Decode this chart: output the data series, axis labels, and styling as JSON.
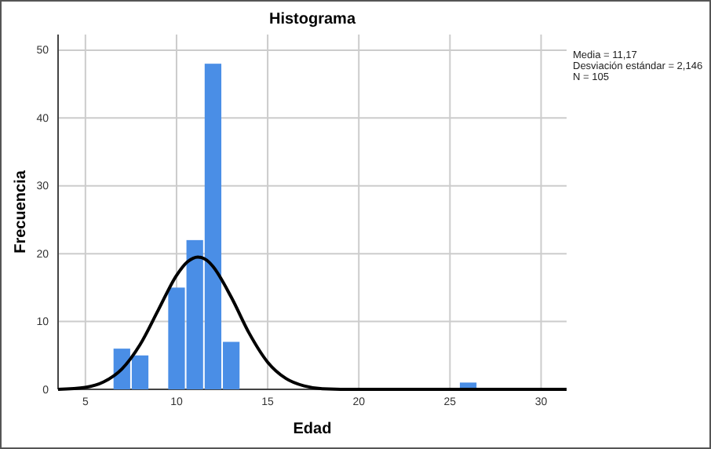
{
  "chart_data": {
    "type": "histogram",
    "title": "Histograma",
    "xlabel": "Edad",
    "ylabel": "Frecuencia",
    "bins": [
      6.5,
      7.5,
      8.5,
      9.5,
      10.5,
      11.5,
      12.5,
      13.5,
      14.5,
      15.5,
      16.5,
      17.5,
      18.5,
      19.5,
      20.5,
      21.5,
      22.5,
      23.5,
      24.5,
      25.5,
      26.5
    ],
    "values": [
      6,
      5,
      0,
      15,
      22,
      48,
      7,
      0,
      0,
      0,
      0,
      0,
      0,
      0,
      0,
      0,
      0,
      0,
      0,
      1
    ],
    "color": "#4a8ee6",
    "series": [
      {
        "type": "line",
        "color": "#000000",
        "x": [
          3.5,
          5,
          6,
          7,
          8,
          9,
          10,
          10.6,
          11.17,
          11.8,
          12,
          13,
          14,
          15,
          16,
          17,
          18,
          20,
          25,
          31.4
        ],
        "values": [
          0,
          0.3,
          1.1,
          3,
          6.6,
          11.7,
          16.8,
          18.8,
          19.5,
          18.7,
          18.1,
          13.6,
          8.2,
          4,
          1.6,
          0.5,
          0.1,
          0,
          0,
          0
        ]
      }
    ],
    "xlim": [
      3.5,
      31.4
    ],
    "xticks": [
      5,
      10,
      15,
      20,
      25,
      30
    ],
    "ylim": [
      0,
      52.3
    ],
    "yticks": [
      0,
      10,
      20,
      30,
      40,
      50
    ],
    "grid": true,
    "annotations": [
      "Media = 11,17",
      "Desviación estándar = 2,146",
      "N = 105"
    ]
  }
}
